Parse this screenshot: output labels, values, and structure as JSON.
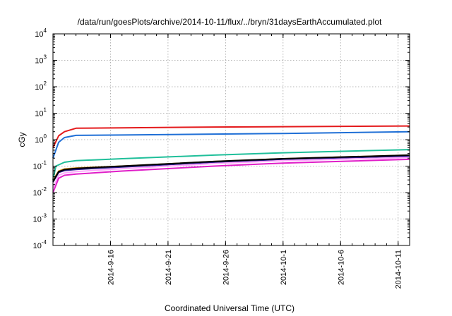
{
  "chart_data": {
    "type": "line",
    "title": "/data/run/goesPlots/archive/2014-10-11/flux/../bryn/31daysEarthAccumulated.plot",
    "xlabel": "Coordinated Universal Time (UTC)",
    "ylabel": "cGy",
    "yscale": "log",
    "ylim": [
      0.0001,
      10000
    ],
    "y_ticks": [
      {
        "base": "10",
        "exp": "-4",
        "value": 0.0001
      },
      {
        "base": "10",
        "exp": "-3",
        "value": 0.001
      },
      {
        "base": "10",
        "exp": "-2",
        "value": 0.01
      },
      {
        "base": "10",
        "exp": "-1",
        "value": 0.1
      },
      {
        "base": "10",
        "exp": "0",
        "value": 1
      },
      {
        "base": "10",
        "exp": "1",
        "value": 10
      },
      {
        "base": "10",
        "exp": "2",
        "value": 100
      },
      {
        "base": "10",
        "exp": "3",
        "value": 1000
      },
      {
        "base": "10",
        "exp": "4",
        "value": 10000
      }
    ],
    "xlim": [
      "2014-09-11",
      "2014-10-12"
    ],
    "x_ticks": [
      "2014-9-16",
      "2014-9-21",
      "2014-9-26",
      "2014-10-1",
      "2014-10-6",
      "2014-10-11"
    ],
    "grid": true,
    "series": [
      {
        "color": "#e41a1c",
        "x": [
          "2014-09-11",
          "2014-09-11T12:00",
          "2014-09-12",
          "2014-09-13",
          "2014-09-17",
          "2014-09-25",
          "2014-10-01",
          "2014-10-12"
        ],
        "y": [
          0.5,
          1.4,
          2.0,
          2.7,
          2.8,
          3.0,
          3.1,
          3.3
        ]
      },
      {
        "color": "#1f6fd6",
        "x": [
          "2014-09-11",
          "2014-09-11T12:00",
          "2014-09-12",
          "2014-09-13",
          "2014-09-17",
          "2014-09-25",
          "2014-10-01",
          "2014-10-12"
        ],
        "y": [
          0.2,
          0.8,
          1.2,
          1.45,
          1.5,
          1.62,
          1.72,
          2.0
        ]
      },
      {
        "color": "#1fbf9a",
        "x": [
          "2014-09-11",
          "2014-09-11T06:00",
          "2014-09-12",
          "2014-09-13",
          "2014-09-17",
          "2014-09-25",
          "2014-10-01",
          "2014-10-12"
        ],
        "y": [
          0.03,
          0.1,
          0.14,
          0.16,
          0.19,
          0.26,
          0.32,
          0.42
        ]
      },
      {
        "color": "#e6a020",
        "x": [
          "2014-09-11",
          "2014-09-11T12:00",
          "2014-09-12",
          "2014-09-13",
          "2014-09-17",
          "2014-09-25",
          "2014-10-01",
          "2014-10-12"
        ],
        "y": [
          0.03,
          0.065,
          0.078,
          0.085,
          0.1,
          0.15,
          0.19,
          0.26
        ]
      },
      {
        "color": "#808080",
        "x": [
          "2014-09-11",
          "2014-09-11T12:00",
          "2014-09-12",
          "2014-09-13",
          "2014-09-17",
          "2014-09-25",
          "2014-10-01",
          "2014-10-12"
        ],
        "y": [
          0.028,
          0.06,
          0.072,
          0.08,
          0.097,
          0.145,
          0.185,
          0.25
        ]
      },
      {
        "color": "#2a1a8a",
        "x": [
          "2014-09-11",
          "2014-09-11T12:00",
          "2014-09-12",
          "2014-09-13",
          "2014-09-17",
          "2014-09-25",
          "2014-10-01",
          "2014-10-12"
        ],
        "y": [
          0.025,
          0.058,
          0.068,
          0.075,
          0.093,
          0.14,
          0.18,
          0.24
        ]
      },
      {
        "color": "#000000",
        "x": [
          "2014-09-11",
          "2014-09-11T12:00",
          "2014-09-12",
          "2014-09-13",
          "2014-09-17",
          "2014-09-25",
          "2014-10-01",
          "2014-10-12"
        ],
        "y": [
          0.026,
          0.062,
          0.074,
          0.082,
          0.1,
          0.15,
          0.19,
          0.26
        ]
      },
      {
        "color": "#ffa8ff",
        "x": [
          "2014-09-11",
          "2014-09-11T12:00",
          "2014-09-12",
          "2014-09-13",
          "2014-09-17",
          "2014-09-25",
          "2014-10-01",
          "2014-10-12"
        ],
        "y": [
          0.015,
          0.045,
          0.055,
          0.062,
          0.08,
          0.125,
          0.16,
          0.21
        ]
      },
      {
        "color": "#e01ec8",
        "x": [
          "2014-09-11",
          "2014-09-11T12:00",
          "2014-09-12",
          "2014-09-13",
          "2014-09-17",
          "2014-09-25",
          "2014-10-01",
          "2014-10-12"
        ],
        "y": [
          0.01,
          0.035,
          0.045,
          0.05,
          0.065,
          0.1,
          0.13,
          0.18
        ]
      }
    ]
  }
}
